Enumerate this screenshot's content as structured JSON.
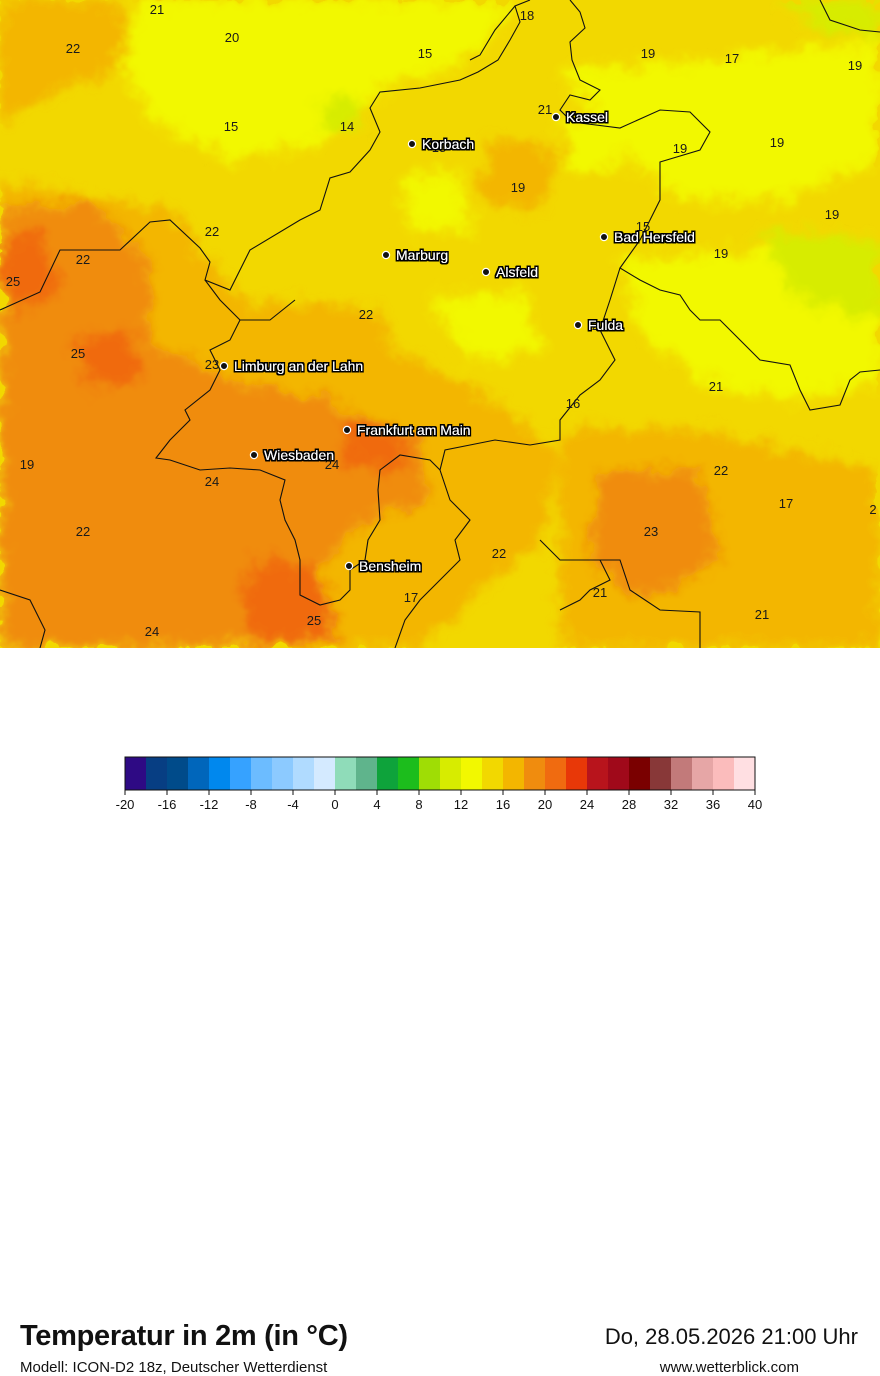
{
  "title": "Temperatur in 2m (in °C)",
  "subtitle": "Modell: ICON-D2 18z, Deutscher Wetterdienst",
  "datetime": "Do, 28.05.2026 21:00 Uhr",
  "website": "www.wetterblick.com",
  "cities": [
    {
      "name": "Kassel"
    },
    {
      "name": "Korbach"
    },
    {
      "name": "Bad Hersfeld"
    },
    {
      "name": "Marburg"
    },
    {
      "name": "Alsfeld"
    },
    {
      "name": "Fulda"
    },
    {
      "name": "Limburg an der Lahn"
    },
    {
      "name": "Frankfurt am Main"
    },
    {
      "name": "Wiesbaden"
    },
    {
      "name": "Bensheim"
    }
  ],
  "temperature_labels": [
    "21",
    "18",
    "20",
    "22",
    "15",
    "19",
    "17",
    "19",
    "21",
    "15",
    "14",
    "18",
    "19",
    "19",
    "19",
    "22",
    "15",
    "22",
    "19",
    "25",
    "19",
    "22",
    "25",
    "23",
    "21",
    "21",
    "16",
    "22",
    "24",
    "19",
    "24",
    "22",
    "17",
    "23",
    "2",
    "22",
    "21",
    "17",
    "24",
    "25",
    "21"
  ],
  "legend": {
    "colors": [
      "#2e0a84",
      "#073e83",
      "#004b8a",
      "#0066bb",
      "#0088ee",
      "#36a2ff",
      "#6cbcff",
      "#8ccaff",
      "#b0dbff",
      "#d4eaff",
      "#8fdcb9",
      "#5fb48c",
      "#0ea33b",
      "#1cbd1c",
      "#9fdd05",
      "#d7ec00",
      "#f2f800",
      "#f2d800",
      "#f3b600",
      "#f08c0e",
      "#f06b10",
      "#e83808",
      "#b8141c",
      "#a0091a",
      "#7a0000",
      "#883838",
      "#c27a7a",
      "#e6a6a6",
      "#fbbcbc",
      "#ffdfe2"
    ],
    "tick_labels": [
      "-20",
      "-16",
      "-12",
      "-8",
      "-4",
      "0",
      "4",
      "8",
      "12",
      "16",
      "20",
      "24",
      "28",
      "32",
      "36",
      "40"
    ],
    "min": -20,
    "max": 40,
    "step": 2
  }
}
